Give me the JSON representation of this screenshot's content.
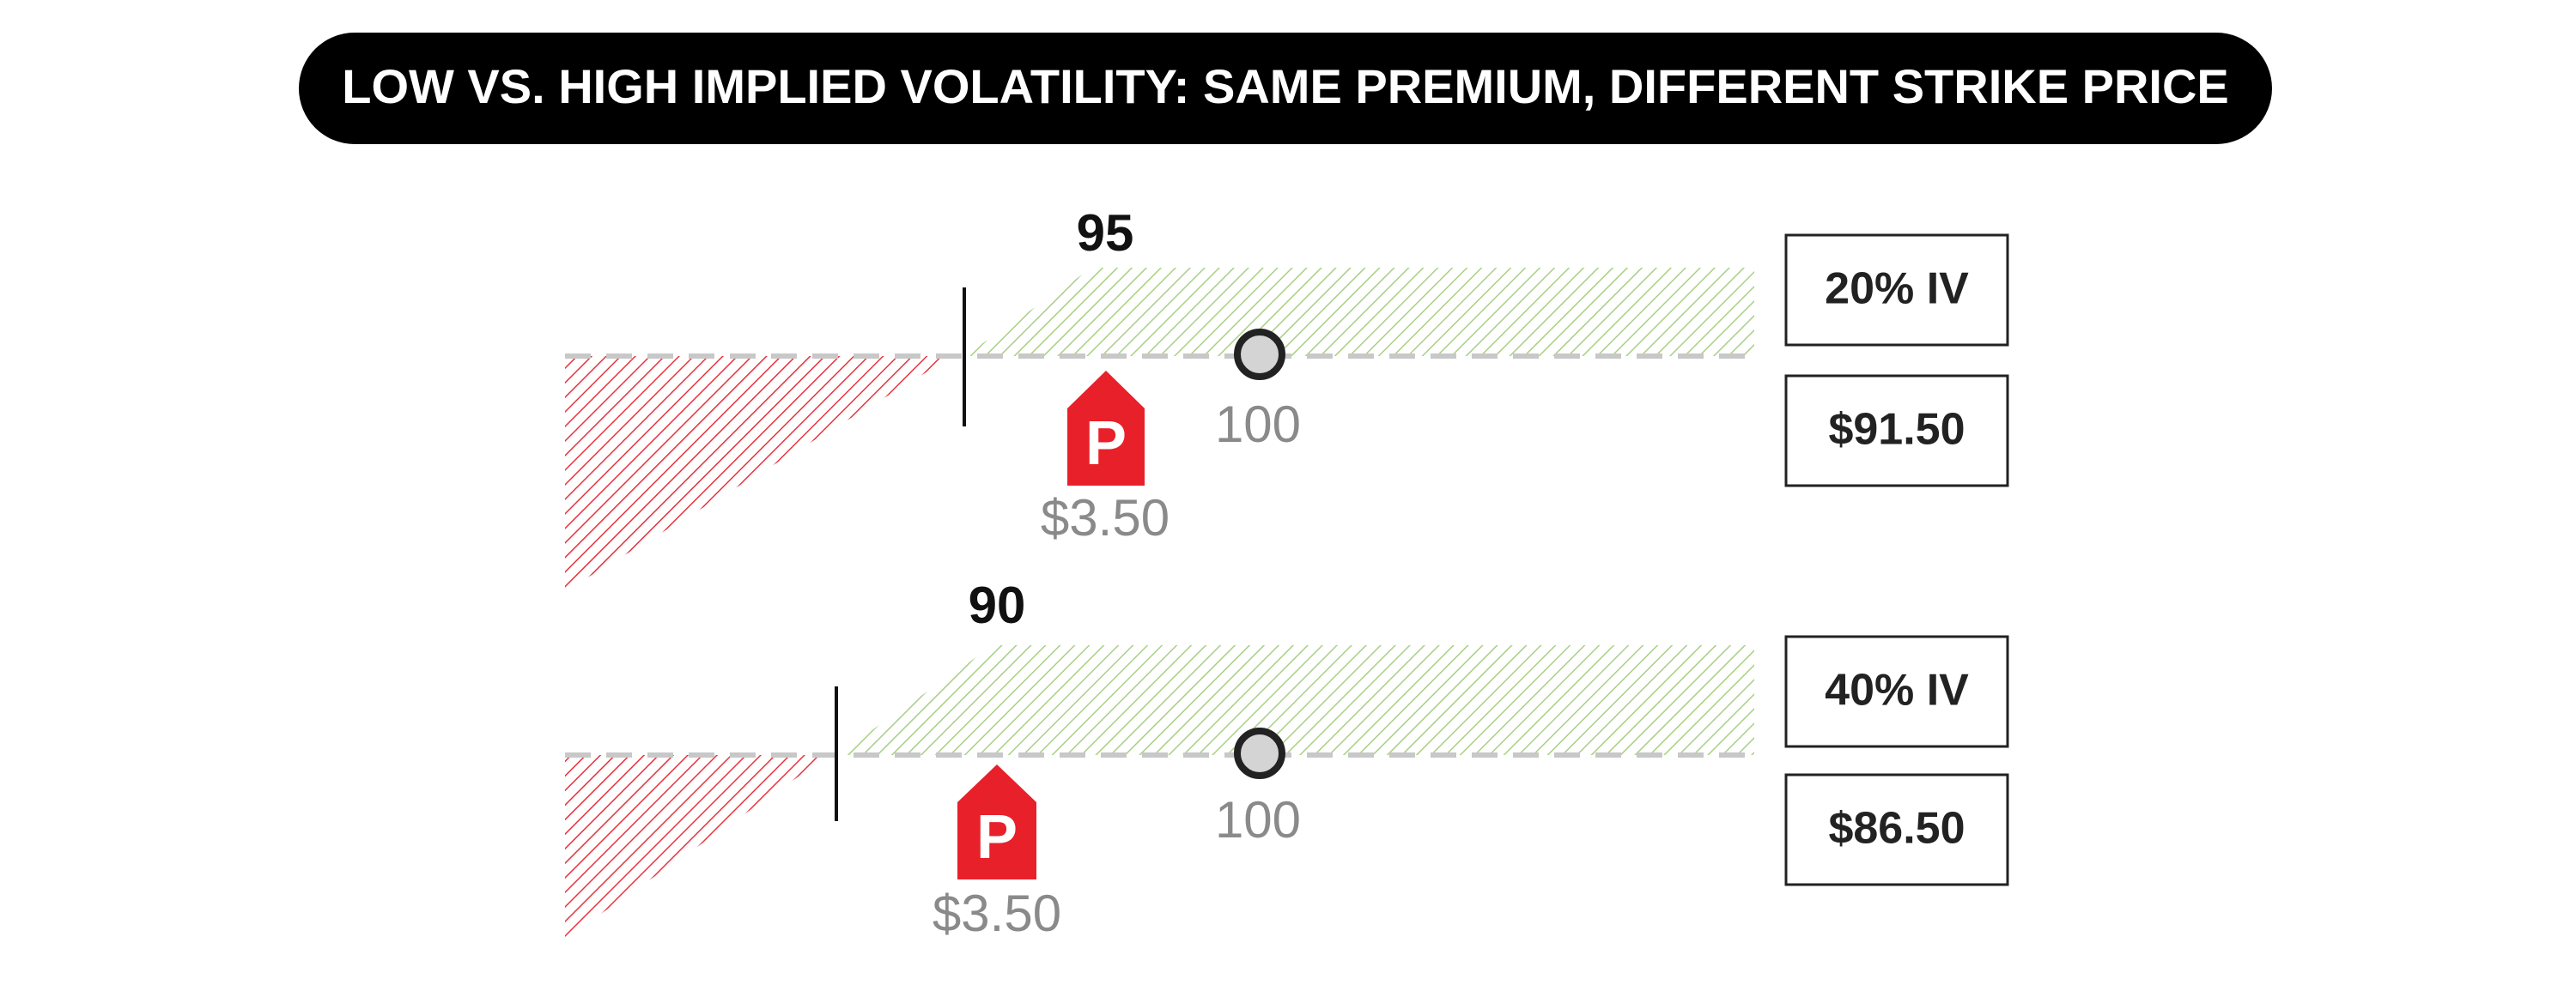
{
  "title": "LOW VS. HIGH IMPLIED VOLATILITY: SAME PREMIUM, DIFFERENT STRIKE PRICE",
  "rows": [
    {
      "strike": "95",
      "stock_price": "100",
      "premium_icon": "P",
      "premium": "$3.50",
      "volatility": "20% IV",
      "breakeven": "$91.50"
    },
    {
      "strike": "90",
      "stock_price": "100",
      "premium_icon": "P",
      "premium": "$3.50",
      "volatility": "40% IV",
      "breakeven": "$86.50"
    }
  ]
}
